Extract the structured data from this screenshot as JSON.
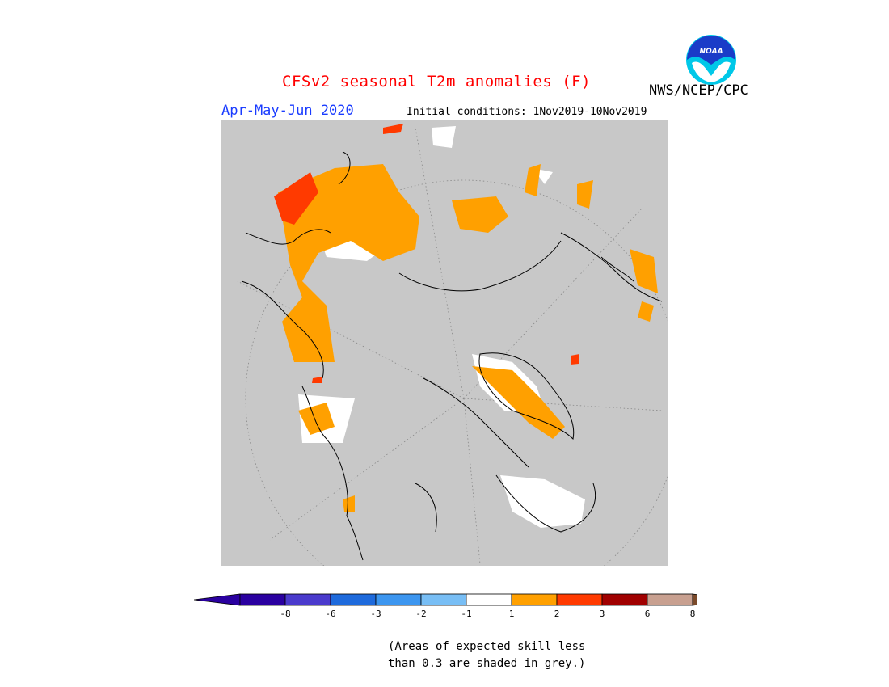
{
  "header": {
    "title": "CFSv2 seasonal T2m anomalies (F)",
    "organization": "NWS/NCEP/CPC",
    "season": "Apr-May-Jun 2020",
    "initial_conditions": "Initial conditions: 1Nov2019-10Nov2019",
    "logo_text": "NOAA"
  },
  "colors": {
    "title": "#ff0000",
    "season": "#1a3cff",
    "map_background": "#c8c8c8",
    "warm_1_2": "#ffa000",
    "warm_2_3": "#ff3a00",
    "warm_3_6": "#a00000",
    "warm_6_8": "#c8a090",
    "warm_gt_8": "#7a4a2a",
    "near_normal": "#ffffff"
  },
  "legend": {
    "bins": [
      {
        "label": "-8",
        "color": "#2a00a0"
      },
      {
        "label": "-6",
        "color": "#4a3acc"
      },
      {
        "label": "-3",
        "color": "#1e6adc"
      },
      {
        "label": "-2",
        "color": "#3c96f0"
      },
      {
        "label": "-1",
        "color": "#78bef5"
      },
      {
        "label": "1",
        "color": "#ffffff"
      },
      {
        "label": "2",
        "color": "#ffa000"
      },
      {
        "label": "3",
        "color": "#ff3a00"
      },
      {
        "label": "6",
        "color": "#a00000"
      },
      {
        "label": "8",
        "color": "#c8a090"
      }
    ],
    "under_color": "#2a00a0",
    "over_color": "#7a4a2a"
  },
  "note": {
    "line1": "(Areas of expected skill less",
    "line2": "than 0.3 are shaded in grey.)"
  }
}
